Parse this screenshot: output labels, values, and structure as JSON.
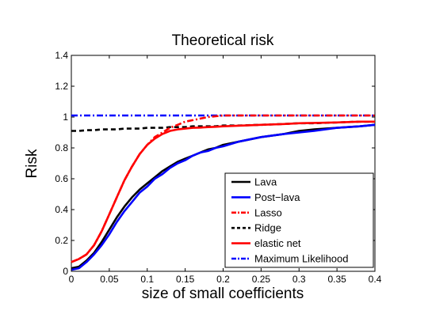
{
  "chart_data": {
    "type": "line",
    "title": "Theoretical risk",
    "xlabel": "size of small coefficients",
    "ylabel": "Risk",
    "xlim": [
      0,
      0.4
    ],
    "ylim": [
      0,
      1.4
    ],
    "xticks": [
      "0",
      "0.05",
      "0.1",
      "0.15",
      "0.2",
      "0.25",
      "0.3",
      "0.35",
      "0.4"
    ],
    "yticks": [
      "0",
      "0.2",
      "0.4",
      "0.6",
      "0.8",
      "1",
      "1.2",
      "1.4"
    ],
    "grid": false,
    "legend_position": "bottom-right",
    "x": [
      0,
      0.01,
      0.02,
      0.03,
      0.04,
      0.05,
      0.06,
      0.07,
      0.08,
      0.09,
      0.1,
      0.11,
      0.12,
      0.13,
      0.14,
      0.15,
      0.16,
      0.17,
      0.18,
      0.19,
      0.2,
      0.22,
      0.25,
      0.28,
      0.3,
      0.32,
      0.35,
      0.38,
      0.4
    ],
    "series": [
      {
        "name": "Lava",
        "color": "#000000",
        "dash": "solid",
        "values": [
          0.02,
          0.03,
          0.07,
          0.12,
          0.19,
          0.27,
          0.35,
          0.42,
          0.48,
          0.53,
          0.57,
          0.61,
          0.65,
          0.68,
          0.71,
          0.73,
          0.75,
          0.77,
          0.79,
          0.8,
          0.82,
          0.84,
          0.87,
          0.89,
          0.91,
          0.92,
          0.93,
          0.94,
          0.95
        ]
      },
      {
        "name": "Post−lava",
        "color": "#0000ff",
        "dash": "solid",
        "values": [
          0.01,
          0.02,
          0.06,
          0.11,
          0.17,
          0.24,
          0.32,
          0.39,
          0.45,
          0.51,
          0.55,
          0.6,
          0.63,
          0.67,
          0.7,
          0.72,
          0.75,
          0.77,
          0.78,
          0.8,
          0.81,
          0.84,
          0.87,
          0.89,
          0.9,
          0.91,
          0.93,
          0.94,
          0.95
        ]
      },
      {
        "name": "Lasso",
        "color": "#ff0000",
        "dash": "dashdot",
        "values": [
          0.06,
          0.08,
          0.11,
          0.17,
          0.26,
          0.37,
          0.48,
          0.59,
          0.68,
          0.76,
          0.82,
          0.87,
          0.9,
          0.93,
          0.95,
          0.97,
          0.98,
          0.99,
          1.0,
          1.005,
          1.01,
          1.01,
          1.01,
          1.01,
          1.01,
          1.01,
          1.01,
          1.01,
          1.01
        ]
      },
      {
        "name": "Ridge",
        "color": "#000000",
        "dash": "dashed",
        "values": [
          0.91,
          0.91,
          0.915,
          0.915,
          0.92,
          0.92,
          0.92,
          0.925,
          0.925,
          0.925,
          0.93,
          0.93,
          0.93,
          0.935,
          0.935,
          0.935,
          0.94,
          0.94,
          0.94,
          0.94,
          0.945,
          0.945,
          0.95,
          0.955,
          0.96,
          0.96,
          0.965,
          0.97,
          0.97
        ]
      },
      {
        "name": "elastic net",
        "color": "#ff0000",
        "dash": "solid",
        "values": [
          0.06,
          0.08,
          0.11,
          0.17,
          0.26,
          0.37,
          0.48,
          0.59,
          0.68,
          0.76,
          0.82,
          0.86,
          0.89,
          0.91,
          0.92,
          0.925,
          0.93,
          0.932,
          0.935,
          0.937,
          0.94,
          0.944,
          0.95,
          0.955,
          0.96,
          0.962,
          0.965,
          0.97,
          0.97
        ]
      },
      {
        "name": "Maximum Likelihood",
        "color": "#0000ff",
        "dash": "dashdot",
        "values": [
          1.01,
          1.01,
          1.01,
          1.01,
          1.01,
          1.01,
          1.01,
          1.01,
          1.01,
          1.01,
          1.01,
          1.01,
          1.01,
          1.01,
          1.01,
          1.01,
          1.01,
          1.01,
          1.01,
          1.01,
          1.01,
          1.01,
          1.01,
          1.01,
          1.01,
          1.01,
          1.01,
          1.01,
          1.01
        ]
      }
    ]
  }
}
